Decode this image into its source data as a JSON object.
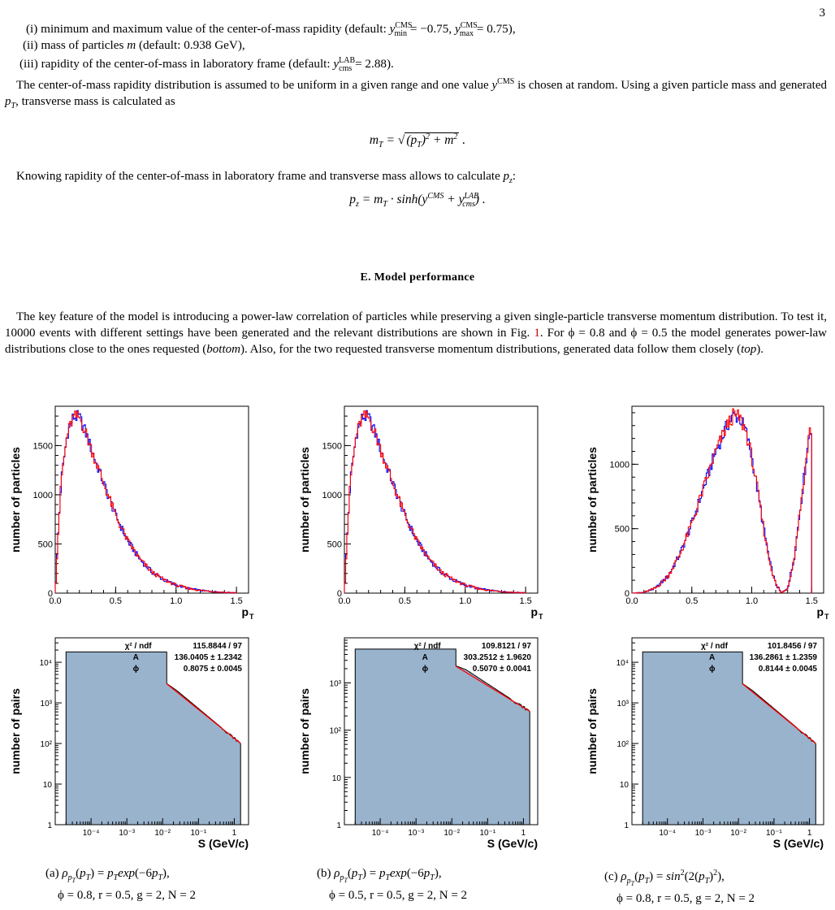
{
  "page_number": "3",
  "items": [
    "(i) minimum and maximum value of the center-of-mass rapidity (default: y_min^CMS = −0.75, y_max^CMS = 0.75),",
    "(ii) mass of particles m (default: 0.938 GeV),",
    "(iii) rapidity of the center-of-mass in laboratory frame (default: y_cms^LAB = 2.88)."
  ],
  "para1": "The center-of-mass rapidity distribution is assumed to be uniform in a given range and one value y^CMS is chosen at random. Using a given particle mass and generated pT, transverse mass is calculated as",
  "eq1": "mT = √((pT)² + m²) .",
  "para2": "Knowing rapidity of the center-of-mass in laboratory frame and transverse mass allows to calculate pz:",
  "eq2": "pz = mT · sinh(y^CMS + y_cms^LAB) .",
  "section_heading": "E.   Model performance",
  "para3": "The key feature of the model is introducing a power-law correlation of particles while preserving a given single-particle transverse momentum distribution. To test it, 10000 events with different settings have been generated and the relevant distributions are shown in Fig. 1. For ϕ = 0.8 and ϕ = 0.5 the model generates power-law distributions close to the ones requested (bottom). Also, for the two requested transverse momentum distributions, generated data follow them closely (top).",
  "captions": [
    {
      "line1": "(a) ρpT(pT) = pT exp(−6pT),",
      "line2": "ϕ = 0.8, r = 0.5, g = 2, N = 2"
    },
    {
      "line1": "(b) ρpT(pT) = pT exp(−6pT),",
      "line2": "ϕ = 0.5, r = 0.5, g = 2, N = 2"
    },
    {
      "line1": "(c) ρpT(pT) = sin²(2(pT)²),",
      "line2": "ϕ = 0.8, r = 0.5, g = 2, N = 2"
    }
  ],
  "chart_data": [
    {
      "type": "line",
      "ylabel": "number of particles",
      "xlabel": "pT",
      "xlim": [
        0,
        1.6
      ],
      "ylim": [
        0,
        1900
      ],
      "xticks": [
        "0.0",
        "0.5",
        "1.0",
        "1.5"
      ],
      "yticks": [
        "0",
        "500",
        "1000",
        "1500"
      ],
      "x": [
        0,
        0.02,
        0.05,
        0.1,
        0.15,
        0.2,
        0.25,
        0.3,
        0.4,
        0.5,
        0.6,
        0.7,
        0.8,
        0.9,
        1.0,
        1.1,
        1.2,
        1.3,
        1.4,
        1.5
      ],
      "values": [
        0,
        500,
        1150,
        1620,
        1790,
        1790,
        1640,
        1460,
        1120,
        790,
        530,
        345,
        215,
        135,
        82,
        48,
        28,
        16,
        8,
        4
      ],
      "colors": [
        "#0000ff",
        "#ff0000"
      ]
    },
    {
      "type": "line",
      "ylabel": "number of particles",
      "xlabel": "pT",
      "xlim": [
        0,
        1.6
      ],
      "ylim": [
        0,
        1900
      ],
      "xticks": [
        "0.0",
        "0.5",
        "1.0",
        "1.5"
      ],
      "yticks": [
        "0",
        "500",
        "1000",
        "1500"
      ],
      "x": [
        0,
        0.02,
        0.05,
        0.1,
        0.15,
        0.2,
        0.25,
        0.3,
        0.4,
        0.5,
        0.6,
        0.7,
        0.8,
        0.9,
        1.0,
        1.1,
        1.2,
        1.3,
        1.4,
        1.5
      ],
      "values": [
        0,
        500,
        1150,
        1620,
        1790,
        1790,
        1640,
        1460,
        1120,
        790,
        530,
        345,
        215,
        135,
        82,
        48,
        28,
        16,
        8,
        4
      ],
      "colors": [
        "#0000ff",
        "#ff0000"
      ]
    },
    {
      "type": "line",
      "ylabel": "number of particles",
      "xlabel": "pT",
      "xlim": [
        0,
        1.6
      ],
      "ylim": [
        0,
        1450
      ],
      "xticks": [
        "0.0",
        "0.5",
        "1.0",
        "1.5"
      ],
      "yticks": [
        "0",
        "500",
        "1000"
      ],
      "x": [
        0,
        0.1,
        0.2,
        0.3,
        0.4,
        0.5,
        0.6,
        0.7,
        0.8,
        0.85,
        0.9,
        0.95,
        1.0,
        1.05,
        1.1,
        1.15,
        1.2,
        1.25,
        1.3,
        1.35,
        1.4,
        1.45,
        1.48,
        1.5,
        1.501
      ],
      "values": [
        0,
        5,
        40,
        130,
        300,
        540,
        820,
        1100,
        1310,
        1380,
        1360,
        1260,
        1060,
        790,
        500,
        240,
        70,
        0,
        40,
        250,
        620,
        1000,
        1240,
        1290,
        0
      ],
      "colors": [
        "#0000ff",
        "#ff0000"
      ]
    },
    {
      "type": "area",
      "ylabel": "number of pairs",
      "xlabel": "S (GeV/c)",
      "scale": "log-log",
      "xlim": [
        1e-05,
        2.5
      ],
      "ylim": [
        1,
        40000
      ],
      "xticks": [
        "10⁻⁴",
        "10⁻³",
        "10⁻²",
        "10⁻¹",
        "1"
      ],
      "yticks": [
        "1",
        "10",
        "10²",
        "10³",
        "10⁴"
      ],
      "x": [
        2e-05,
        0.013,
        0.013,
        0.025,
        1.5
      ],
      "values": [
        18000,
        18000,
        3000,
        2000,
        100
      ],
      "fit": {
        "chi2_ndf_label": "χ² / ndf",
        "chi2_ndf": "115.8844 / 97",
        "A_label": "A",
        "A": "136.0405 ± 1.2342",
        "phi_label": "ϕ",
        "phi": "0.8075 ± 0.0045"
      }
    },
    {
      "type": "area",
      "ylabel": "number of pairs",
      "xlabel": "S (GeV/c)",
      "scale": "log-log",
      "xlim": [
        1e-05,
        2.5
      ],
      "ylim": [
        1,
        9000
      ],
      "xticks": [
        "10⁻⁴",
        "10⁻³",
        "10⁻²",
        "10⁻¹",
        "1"
      ],
      "yticks": [
        "1",
        "10",
        "10²",
        "10³"
      ],
      "x": [
        2e-05,
        0.013,
        0.013,
        0.025,
        1.5
      ],
      "values": [
        5200,
        5200,
        2300,
        1900,
        250
      ],
      "fit": {
        "chi2_ndf_label": "χ² / ndf",
        "chi2_ndf": "109.8121 / 97",
        "A_label": "A",
        "A": "303.2512 ± 1.9620",
        "phi_label": "ϕ",
        "phi": "0.5070 ± 0.0041"
      }
    },
    {
      "type": "area",
      "ylabel": "number of pairs",
      "xlabel": "S (GeV/c)",
      "scale": "log-log",
      "xlim": [
        1e-05,
        2.5
      ],
      "ylim": [
        1,
        40000
      ],
      "xticks": [
        "10⁻⁴",
        "10⁻³",
        "10⁻²",
        "10⁻¹",
        "1"
      ],
      "yticks": [
        "1",
        "10",
        "10²",
        "10³",
        "10⁴"
      ],
      "x": [
        2e-05,
        0.013,
        0.013,
        0.025,
        1.5
      ],
      "values": [
        18000,
        18000,
        3000,
        2000,
        100
      ],
      "fit": {
        "chi2_ndf_label": "χ² / ndf",
        "chi2_ndf": "101.8456 / 97",
        "A_label": "A",
        "A": "136.2861 ± 1.2359",
        "phi_label": "ϕ",
        "phi": "0.8144 ± 0.0045"
      }
    }
  ]
}
